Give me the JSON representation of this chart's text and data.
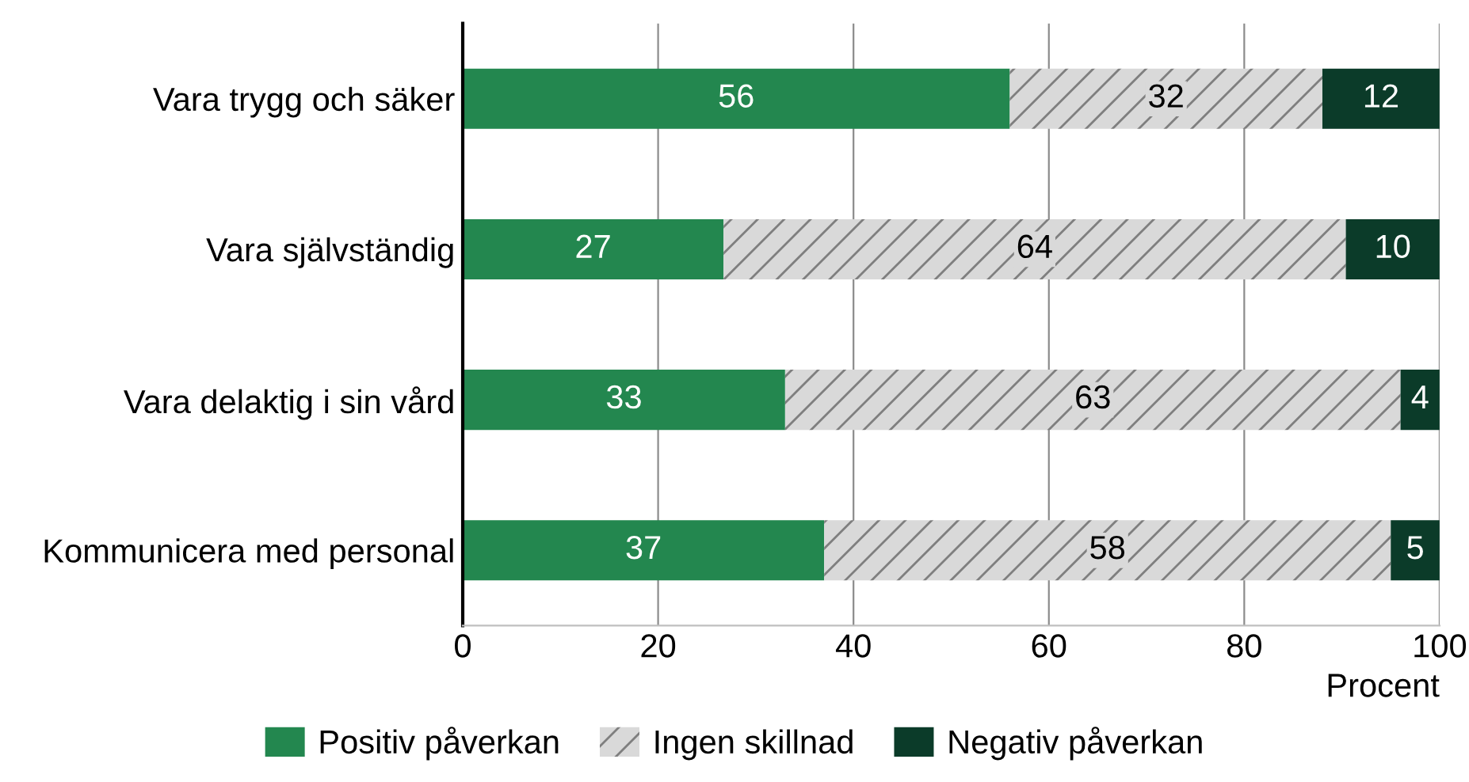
{
  "chart_data": {
    "type": "bar",
    "orientation": "horizontal",
    "stacked": true,
    "xlabel": "Procent",
    "categories": [
      "Vara trygg och säker",
      "Vara självständig",
      "Vara delaktig i sin vård",
      "Kommunicera med personal"
    ],
    "series": [
      {
        "name": "Positiv påverkan",
        "color": "#23874f",
        "values": [
          56,
          26.7,
          33,
          37
        ],
        "value_labels": [
          "56",
          "27",
          "33",
          "37"
        ]
      },
      {
        "name": "Ingen skillnad",
        "color": "#d9d9d9",
        "values": [
          32,
          63.7,
          63,
          58
        ],
        "value_labels": [
          "32",
          "64",
          "63",
          "58"
        ]
      },
      {
        "name": "Negativ påverkan",
        "color": "#0b3b29",
        "values": [
          12,
          9.6,
          4,
          5
        ],
        "value_labels": [
          "12",
          "10",
          "4",
          "5"
        ]
      }
    ],
    "xlim": [
      0,
      100
    ],
    "xticks": [
      0,
      20,
      40,
      60,
      80,
      100
    ],
    "grid": "x",
    "legend": "bottom"
  }
}
